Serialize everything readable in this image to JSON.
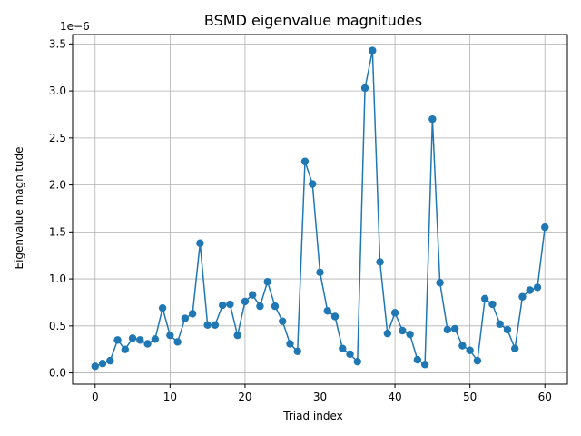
{
  "chart_data": {
    "type": "line",
    "title": "BSMD eigenvalue magnitudes",
    "xlabel": "Triad index",
    "ylabel": "Eigenvalue magnitude",
    "y_multiplier_label": "1e−6",
    "xlim": [
      -3,
      63
    ],
    "ylim": [
      -0.12,
      3.6
    ],
    "xticks": [
      0,
      10,
      20,
      30,
      40,
      50,
      60
    ],
    "xtick_labels": [
      "0",
      "10",
      "20",
      "30",
      "40",
      "50",
      "60"
    ],
    "yticks": [
      0,
      0.5,
      1.0,
      1.5,
      2.0,
      2.5,
      3.0,
      3.5
    ],
    "ytick_labels": [
      "0.0",
      "0.5",
      "1.0",
      "1.5",
      "2.0",
      "2.5",
      "3.0",
      "3.5"
    ],
    "grid": true,
    "marker": "circle",
    "color": "#1f77b4",
    "series": [
      {
        "x": [
          0,
          1,
          2,
          3,
          4,
          5,
          6,
          7,
          8,
          9,
          10,
          11,
          12,
          13,
          14,
          15,
          16,
          17,
          18,
          19,
          20,
          21,
          22,
          23,
          24,
          25,
          26,
          27,
          28,
          29,
          30,
          31,
          32,
          33,
          34,
          35,
          36,
          37,
          38,
          39,
          40,
          41,
          42,
          43,
          44,
          45,
          46,
          47,
          48,
          49,
          50,
          51,
          52,
          53,
          54,
          55,
          56,
          57,
          58,
          59,
          60
        ],
        "y": [
          0.07,
          0.1,
          0.13,
          0.35,
          0.25,
          0.37,
          0.35,
          0.31,
          0.36,
          0.69,
          0.4,
          0.33,
          0.58,
          0.63,
          1.38,
          0.51,
          0.51,
          0.72,
          0.73,
          0.4,
          0.76,
          0.83,
          0.71,
          0.97,
          0.71,
          0.55,
          0.31,
          0.23,
          2.25,
          2.01,
          1.07,
          0.66,
          0.6,
          0.26,
          0.2,
          0.12,
          3.03,
          3.43,
          1.18,
          0.42,
          0.64,
          0.45,
          0.41,
          0.14,
          0.09,
          2.7,
          0.96,
          0.46,
          0.47,
          0.29,
          0.24,
          0.13,
          0.79,
          0.73,
          0.52,
          0.46,
          0.26,
          0.81,
          0.88,
          0.91,
          1.55
        ]
      }
    ]
  }
}
